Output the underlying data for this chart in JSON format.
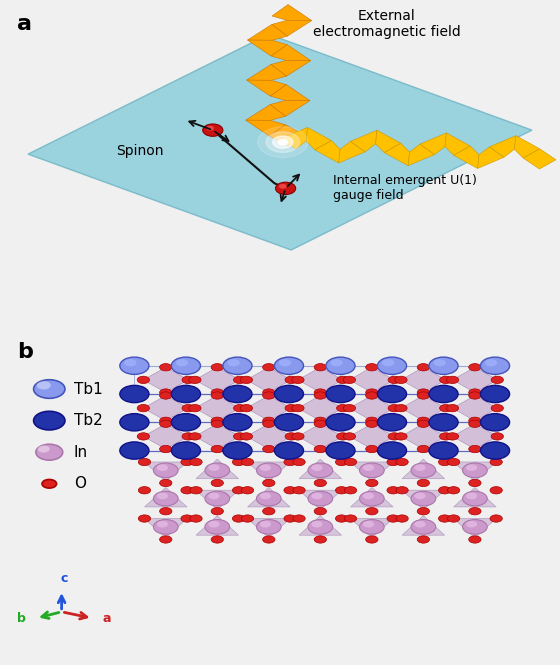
{
  "panel_a_label": "a",
  "panel_b_label": "b",
  "text_external": "External\nelectromagnetic field",
  "text_spinon": "Spinon",
  "text_internal": "Internal emergent U(1)\ngauge field",
  "legend_tb1": "Tb1",
  "legend_tb2": "Tb2",
  "legend_in": "In",
  "legend_o": "O",
  "bg_color": "#f0f0f0",
  "panel_a_bg": "#dde8ec",
  "plane_color": "#7dc8d8",
  "wave_color": "#FFA500",
  "spinon_color": "#cc1111",
  "tb1_color_face": "#8899ee",
  "tb1_color_edge": "#4455bb",
  "tb2_color_face": "#2233aa",
  "tb2_color_edge": "#111188",
  "in_color_face": "#cc99cc",
  "in_color_edge": "#aa77aa",
  "o_color": "#dd2222",
  "o_edge_color": "#aa0000",
  "bond_color_tb2": "#2233aa",
  "bond_color_tb1": "#6677cc",
  "poly_color": "#c0a0c8",
  "poly_edge": "#9070a8",
  "axis_c_color": "#2255dd",
  "axis_b_color": "#22aa22",
  "axis_a_color": "#cc2222"
}
